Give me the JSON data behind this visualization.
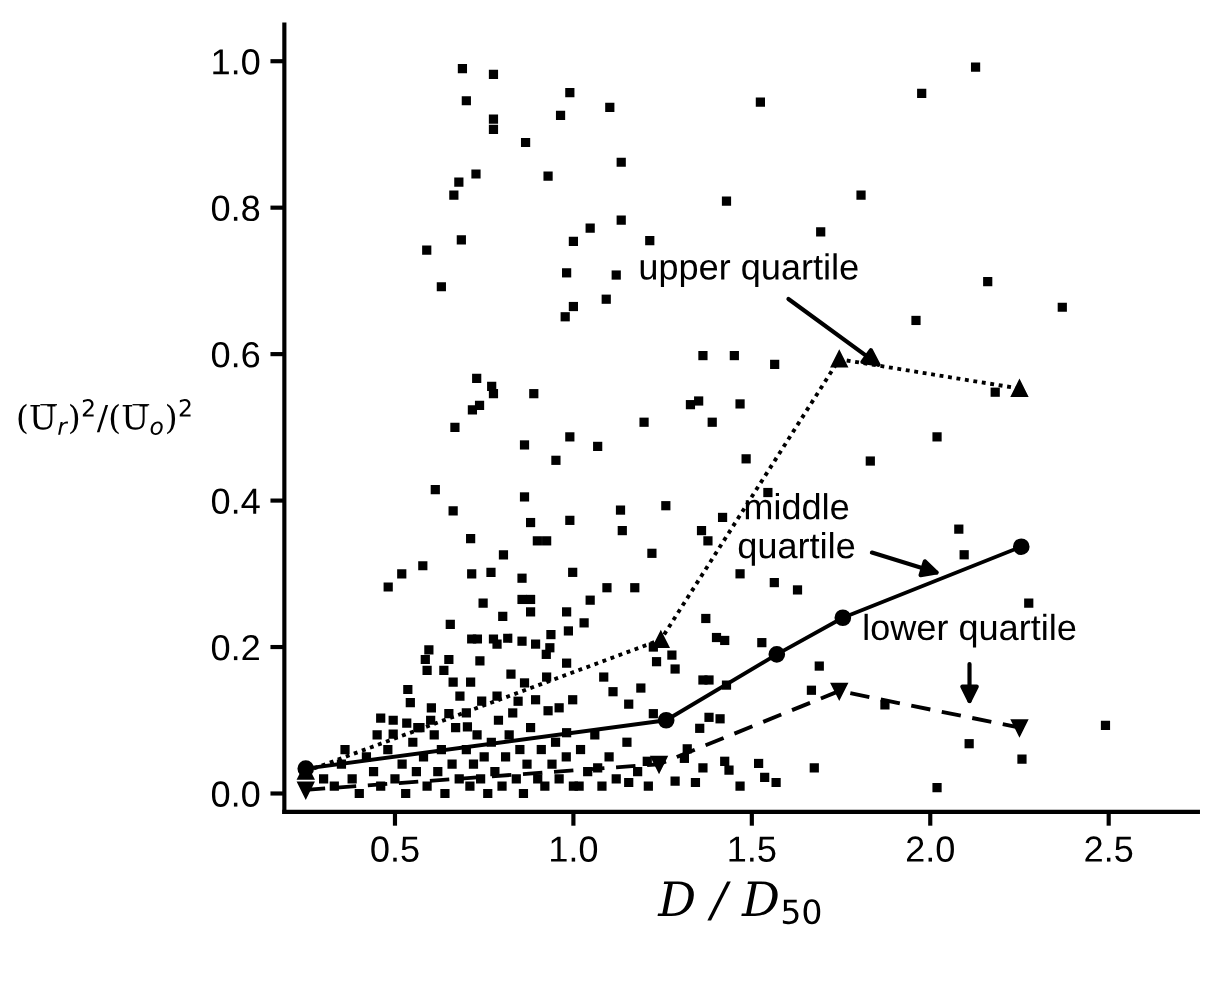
{
  "chart_data": {
    "type": "scatter",
    "xlabel": "D / D$_{50}$",
    "ylabel": "(U̅$_{r}$)$^{2}$/(U̅$_{o}$)$^{2}$",
    "xlim": [
      0.19,
      2.75
    ],
    "xticks": [
      0.5,
      {
        "value": 1,
        "label": "1.0"
      },
      1.5,
      {
        "value": 2,
        "label": "2.0"
      },
      2.5
    ],
    "ylim": [
      -0.025,
      1.05
    ],
    "yticks": [
      {
        "value": 0,
        "label": "0.0"
      },
      0.2,
      0.4,
      0.6,
      0.8,
      {
        "value": 1,
        "label": "1.0"
      }
    ],
    "grid": false,
    "legend": false,
    "series": [
      {
        "color": "#000000",
        "marker": "square",
        "x": [
          0.689,
          0.776,
          0.7,
          0.776,
          0.776,
          0.99,
          0.964,
          1.102,
          0.866,
          1.134,
          0.727,
          0.679,
          0.665,
          0.929,
          1.047,
          1.134,
          1.0,
          0.589,
          0.686,
          0.63,
          0.981,
          1.12,
          1.092,
          1.0,
          0.977,
          0.729,
          0.771,
          0.776,
          0.889,
          0.717,
          0.737,
          2.127,
          1.976,
          1.524,
          1.429,
          1.806,
          1.214,
          1.693,
          2.161,
          2.37,
          1.96,
          1.363,
          1.451,
          1.564,
          2.182,
          1.328,
          1.351,
          1.467,
          1.198,
          1.389,
          0.99,
          1.068,
          1.484,
          1.832,
          1.545,
          1.259,
          1.132,
          0.99,
          1.137,
          1.359,
          1.418,
          1.377,
          1.22,
          0.998,
          1.467,
          1.094,
          1.047,
          1.172,
          1.563,
          1.628,
          0.981,
          1.03,
          1.371,
          1.401,
          1.424,
          1.528,
          0.981,
          1.224,
          1.276,
          1.233,
          1.285,
          1.689,
          1.363,
          1.38,
          1.429,
          1.667,
          1.38,
          1.411,
          1.354,
          1.319,
          1.424,
          1.519,
          1.436,
          1.363,
          1.342,
          1.285,
          1.467,
          1.568,
          1.675,
          1.536,
          2.019,
          2.08,
          2.095,
          2.276,
          1.873,
          2.491,
          2.109,
          2.257,
          2.019,
          0.668,
          0.863,
          0.951,
          0.613,
          0.663,
          0.863,
          0.88,
          0.899,
          0.925,
          0.712,
          0.804,
          0.481,
          0.519,
          0.578,
          0.715,
          0.769,
          0.856,
          0.747,
          0.856,
          0.88,
          0.88,
          0.802,
          0.655,
          0.715,
          0.731,
          0.776,
          0.786,
          0.816,
          0.856,
          0.894,
          0.934,
          0.937,
          0.986,
          0.595,
          0.651,
          0.585,
          0.738,
          0.924,
          0.59,
          0.637,
          0.536,
          0.663,
          0.712,
          0.825,
          0.863,
          0.925,
          0.543,
          0.602,
          0.682,
          0.743,
          0.786,
          0.845,
          0.894,
          0.46,
          0.495,
          0.533,
          0.651,
          0.929,
          0.96,
          0.998,
          0.495,
          0.564,
          0.703,
          0.981,
          1.085,
          1.111,
          1.189,
          1.155,
          1.224,
          1.311,
          1.207,
          1.155,
          1.068,
          1.016,
          0.3,
          0.33,
          0.35,
          0.38,
          0.4,
          0.42,
          0.44,
          0.46,
          0.48,
          0.5,
          0.52,
          0.53,
          0.55,
          0.56,
          0.58,
          0.59,
          0.61,
          0.62,
          0.63,
          0.64,
          0.66,
          0.67,
          0.68,
          0.7,
          0.71,
          0.72,
          0.73,
          0.74,
          0.75,
          0.76,
          0.77,
          0.78,
          0.79,
          0.8,
          0.81,
          0.82,
          0.84,
          0.85,
          0.86,
          0.87,
          0.88,
          0.9,
          0.91,
          0.92,
          0.94,
          0.95,
          0.96,
          0.98,
          1.0,
          1.02,
          1.04,
          1.06,
          1.08,
          1.1,
          1.12,
          1.15,
          1.18,
          1.21,
          0.45,
          0.6,
          0.7,
          0.83,
          0.36,
          0.57
        ],
        "values": [
          0.99,
          0.982,
          0.946,
          0.921,
          0.907,
          0.957,
          0.926,
          0.937,
          0.889,
          0.862,
          0.846,
          0.835,
          0.817,
          0.843,
          0.772,
          0.783,
          0.754,
          0.742,
          0.756,
          0.692,
          0.711,
          0.708,
          0.675,
          0.665,
          0.651,
          0.567,
          0.556,
          0.546,
          0.546,
          0.524,
          0.53,
          0.992,
          0.956,
          0.944,
          0.809,
          0.817,
          0.755,
          0.767,
          0.699,
          0.664,
          0.646,
          0.598,
          0.598,
          0.586,
          0.548,
          0.531,
          0.536,
          0.532,
          0.507,
          0.507,
          0.487,
          0.474,
          0.457,
          0.454,
          0.411,
          0.393,
          0.387,
          0.373,
          0.359,
          0.359,
          0.377,
          0.345,
          0.328,
          0.302,
          0.3,
          0.281,
          0.264,
          0.281,
          0.288,
          0.278,
          0.248,
          0.233,
          0.239,
          0.213,
          0.209,
          0.206,
          0.178,
          0.2,
          0.189,
          0.18,
          0.17,
          0.174,
          0.155,
          0.155,
          0.148,
          0.141,
          0.104,
          0.102,
          0.089,
          0.061,
          0.044,
          0.041,
          0.032,
          0.035,
          0.015,
          0.017,
          0.01,
          0.015,
          0.035,
          0.022,
          0.487,
          0.361,
          0.326,
          0.26,
          0.121,
          0.093,
          0.068,
          0.047,
          0.008,
          0.5,
          0.476,
          0.455,
          0.415,
          0.386,
          0.405,
          0.37,
          0.345,
          0.345,
          0.348,
          0.326,
          0.282,
          0.3,
          0.311,
          0.3,
          0.302,
          0.294,
          0.26,
          0.265,
          0.265,
          0.248,
          0.242,
          0.231,
          0.211,
          0.211,
          0.211,
          0.204,
          0.212,
          0.208,
          0.204,
          0.199,
          0.217,
          0.222,
          0.196,
          0.183,
          0.183,
          0.181,
          0.19,
          0.168,
          0.168,
          0.142,
          0.152,
          0.152,
          0.163,
          0.151,
          0.159,
          0.124,
          0.117,
          0.133,
          0.126,
          0.133,
          0.126,
          0.128,
          0.103,
          0.1,
          0.096,
          0.109,
          0.113,
          0.117,
          0.128,
          0.081,
          0.09,
          0.091,
          0.083,
          0.159,
          0.139,
          0.144,
          0.122,
          0.109,
          0.048,
          0.044,
          0.015,
          0.035,
          0.01,
          0.02,
          0.01,
          0.04,
          0.02,
          0.0,
          0.05,
          0.03,
          0.01,
          0.06,
          0.02,
          0.04,
          0.0,
          0.07,
          0.03,
          0.05,
          0.01,
          0.08,
          0.03,
          0.06,
          0.0,
          0.04,
          0.09,
          0.02,
          0.06,
          0.01,
          0.04,
          0.08,
          0.02,
          0.05,
          0.0,
          0.07,
          0.03,
          0.1,
          0.01,
          0.05,
          0.08,
          0.02,
          0.06,
          0.0,
          0.04,
          0.09,
          0.02,
          0.06,
          0.01,
          0.04,
          0.07,
          0.02,
          0.05,
          0.01,
          0.06,
          0.03,
          0.08,
          0.01,
          0.05,
          0.02,
          0.07,
          0.03,
          0.01,
          0.08,
          0.1,
          0.11,
          0.11,
          0.06,
          0.09
        ]
      },
      {
        "type": "line",
        "color": "#000000",
        "marker": "triangle",
        "line_style": "dotted",
        "x": [
          0.25,
          1.245,
          1.745,
          2.25
        ],
        "values": [
          0.03,
          0.21,
          0.593,
          0.553
        ]
      },
      {
        "type": "line",
        "color": "#000000",
        "marker": "circle",
        "line_style": "solid",
        "x": [
          0.25,
          1.26,
          1.57,
          1.755,
          2.255
        ],
        "values": [
          0.034,
          0.1,
          0.19,
          0.24,
          0.337
        ]
      },
      {
        "type": "line",
        "color": "#000000",
        "marker": "triangle_down",
        "line_style": "dashed",
        "x": [
          0.25,
          1.24,
          1.745,
          2.25
        ],
        "values": [
          0.005,
          0.04,
          0.14,
          0.09
        ]
      }
    ],
    "annotations": [
      {
        "text": "upper quartile",
        "x": 1.865,
        "y": 0.582
      },
      {
        "text": "middle\nquartile",
        "x": 2.03,
        "y": 0.3
      },
      {
        "text": "lower quartile",
        "x": 2.11,
        "y": 0.12
      }
    ]
  }
}
